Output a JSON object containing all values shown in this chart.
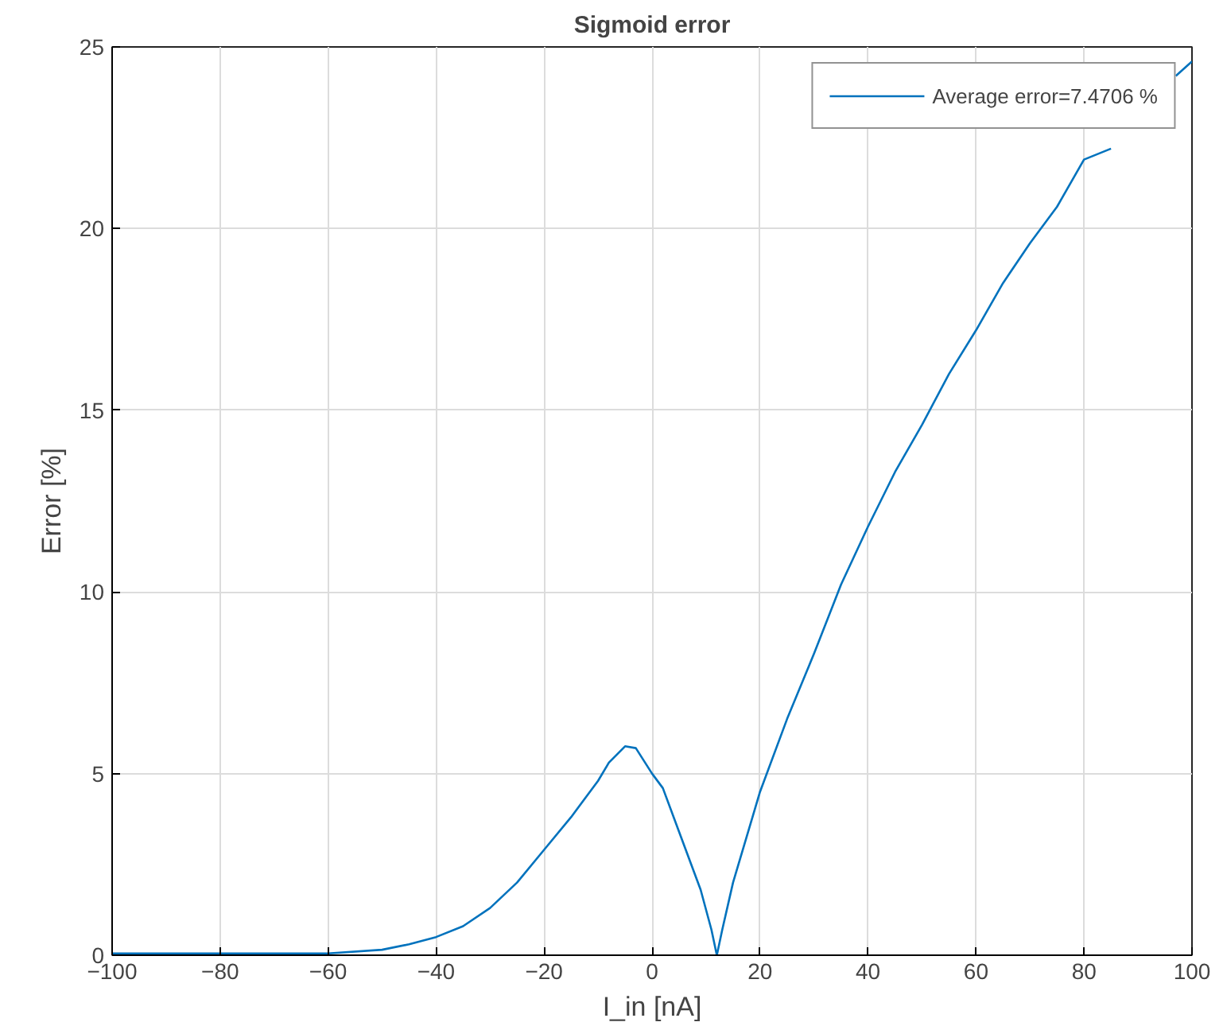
{
  "chart_data": {
    "type": "line",
    "title": "Sigmoid error",
    "xlabel": "I_in [nA]",
    "ylabel": "Error [%]",
    "x": [
      -100,
      -90,
      -80,
      -70,
      -60,
      -50,
      -45,
      -40,
      -35,
      -30,
      -25,
      -20,
      -15,
      -10,
      -8,
      -5,
      -3,
      0,
      2,
      5,
      7,
      9,
      11,
      12,
      13,
      15,
      18,
      20,
      25,
      30,
      35,
      40,
      45,
      50,
      55,
      60,
      65,
      70,
      75,
      80,
      85,
      91,
      97,
      100
    ],
    "series": [
      {
        "name": "Average error=7.4706 %",
        "color": "#0072bd",
        "values": [
          0.05,
          0.05,
          0.05,
          0.05,
          0.05,
          0.15,
          0.3,
          0.5,
          0.8,
          1.3,
          2.0,
          2.9,
          3.8,
          4.8,
          5.3,
          5.75,
          5.7,
          5.0,
          4.6,
          3.4,
          2.6,
          1.8,
          0.7,
          0,
          0.7,
          2.0,
          3.5,
          4.5,
          6.5,
          8.3,
          10.2,
          11.8,
          13.3,
          14.6,
          16.0,
          17.2,
          18.5,
          19.6,
          20.6,
          21.9,
          22.2,
          null,
          24.2,
          24.6
        ]
      }
    ],
    "xlim": [
      -100,
      100
    ],
    "ylim": [
      0,
      25
    ],
    "xticks": [
      -100,
      -80,
      -60,
      -40,
      -20,
      0,
      20,
      40,
      60,
      80,
      100
    ],
    "yticks": [
      0,
      5,
      10,
      15,
      20,
      25
    ],
    "grid": true,
    "legend": "top right",
    "marker": "none",
    "line_style": "solid"
  }
}
